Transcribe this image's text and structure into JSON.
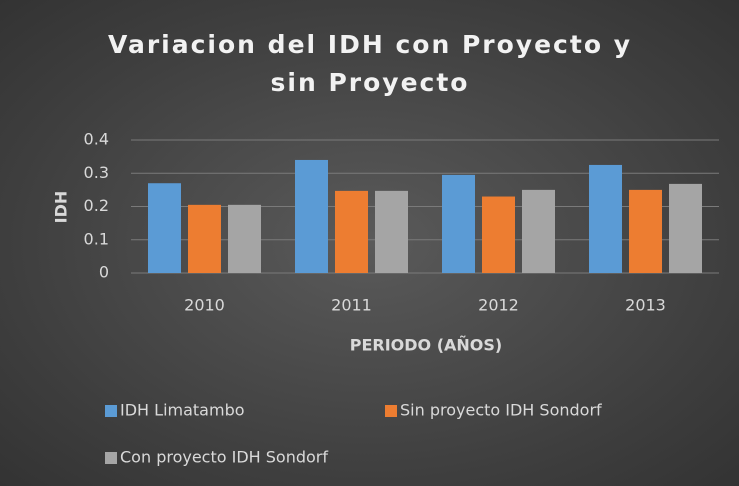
{
  "chart_data": {
    "type": "bar",
    "title": "Variacion del IDH con Proyecto y sin Proyecto",
    "x_label": "PERIODO (AÑOS)",
    "y_label": "IDH",
    "categories": [
      "2010",
      "2011",
      "2012",
      "2013"
    ],
    "series": [
      {
        "name": "IDH Limatambo",
        "color": "#5b9bd5",
        "values": [
          0.27,
          0.34,
          0.295,
          0.325
        ]
      },
      {
        "name": "Sin proyecto IDH Sondorf",
        "color": "#ed7d31",
        "values": [
          0.205,
          0.247,
          0.23,
          0.25
        ]
      },
      {
        "name": "Con proyecto IDH Sondorf",
        "color": "#a5a5a5",
        "values": [
          0.205,
          0.247,
          0.25,
          0.268
        ]
      }
    ],
    "ylim": [
      0,
      0.4
    ],
    "yticks": [
      0,
      0.1,
      0.2,
      0.3,
      0.4
    ],
    "grid": true,
    "legend": "bottom"
  }
}
